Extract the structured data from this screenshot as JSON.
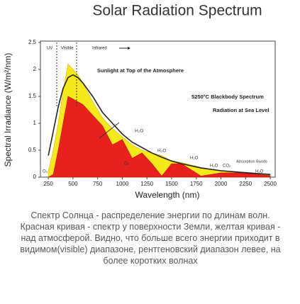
{
  "chart_data": {
    "type": "area",
    "title": "Solar Radiation Spectrum",
    "x_label": "Wavelength (nm)",
    "y_label": "Spectral Irradiance (W/m²/nm)",
    "x": [
      250,
      300,
      350,
      400,
      450,
      500,
      550,
      600,
      700,
      800,
      900,
      1000,
      1100,
      1200,
      1300,
      1400,
      1500,
      1600,
      1800,
      2000,
      2200,
      2500
    ],
    "series": [
      {
        "name": "Sunlight at Top of the Atmosphere",
        "color": "#f4ea1a",
        "values": [
          0.1,
          0.5,
          1.0,
          1.6,
          2.1,
          2.0,
          1.9,
          1.75,
          1.4,
          1.1,
          0.9,
          0.75,
          0.6,
          0.5,
          0.45,
          0.4,
          0.3,
          0.27,
          0.18,
          0.12,
          0.08,
          0.05
        ]
      },
      {
        "name": "Radiation at Sea Level",
        "color": "#e8201e",
        "values": [
          0,
          0.05,
          0.5,
          1.0,
          1.5,
          1.45,
          1.4,
          1.35,
          1.15,
          0.95,
          0.6,
          0.7,
          0.35,
          0.45,
          0.25,
          0.02,
          0.25,
          0.25,
          0.02,
          0.08,
          0.08,
          0.03
        ]
      },
      {
        "name": "5250°C Blackbody Spectrum",
        "color": "#222222",
        "style": "line",
        "values": [
          0.4,
          0.85,
          1.3,
          1.65,
          1.85,
          1.9,
          1.85,
          1.75,
          1.5,
          1.2,
          1.0,
          0.8,
          0.65,
          0.55,
          0.45,
          0.37,
          0.3,
          0.25,
          0.17,
          0.12,
          0.09,
          0.05
        ]
      }
    ],
    "xlim": [
      170,
      2550
    ],
    "ylim": [
      0,
      2.5
    ],
    "xticks": [
      250,
      500,
      750,
      1000,
      1250,
      1500,
      1750,
      2000,
      2250,
      2500
    ],
    "yticks": [
      0,
      0.5,
      1,
      1.5,
      2,
      2.5
    ],
    "annotations": [
      "UV",
      "Visible",
      "Infrared",
      "H₂O",
      "H₂O",
      "O₂",
      "H₂O",
      "Absorption Bands",
      "H₂O",
      "CO₂",
      "H₂O",
      "O₃"
    ],
    "caption": "Спектр Солнца - распределение энергии по длинам волн. Красная кривая - спектр у поверхности Земли, желтая кривая - над атмосферой. Видно, что больше всего энергии приходит в видимом(visible) диапазоне, рентгеновский диапазон левее, на более коротких волнах"
  }
}
